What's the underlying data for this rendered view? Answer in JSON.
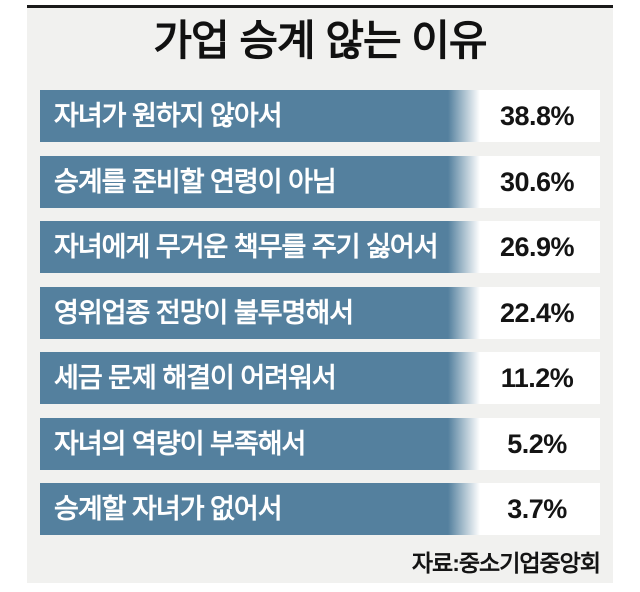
{
  "title": "가업 승계 않는 이유",
  "source": "자료:중소기업중앙회",
  "colors": {
    "bar": "#54809e",
    "panel_background": "#f1f1ef",
    "value_background": "#ffffff",
    "bar_text": "#ffffff",
    "value_text": "#141414",
    "top_border": "#1a1a1a"
  },
  "chart_data": {
    "type": "bar",
    "orientation": "horizontal",
    "title": "가업 승계 않는 이유",
    "categories": [
      "자녀가 원하지 않아서",
      "승계를 준비할 연령이 아님",
      "자녀에게 무거운 책무를 주기 싫어서",
      "영위업종 전망이 불투명해서",
      "세금 문제 해결이 어려워서",
      "자녀의 역량이 부족해서",
      "승계할 자녀가 없어서"
    ],
    "values": [
      38.8,
      30.6,
      26.9,
      22.4,
      11.2,
      5.2,
      3.7
    ],
    "value_labels": [
      "38.8%",
      "30.6%",
      "26.9%",
      "22.4%",
      "11.2%",
      "5.2%",
      "3.7%"
    ],
    "unit": "%",
    "xlabel": "",
    "ylabel": "",
    "legend": false,
    "grid": false,
    "bar_style": "uniform-width label strips with right-fade gradient",
    "source": "자료:중소기업중앙회"
  }
}
